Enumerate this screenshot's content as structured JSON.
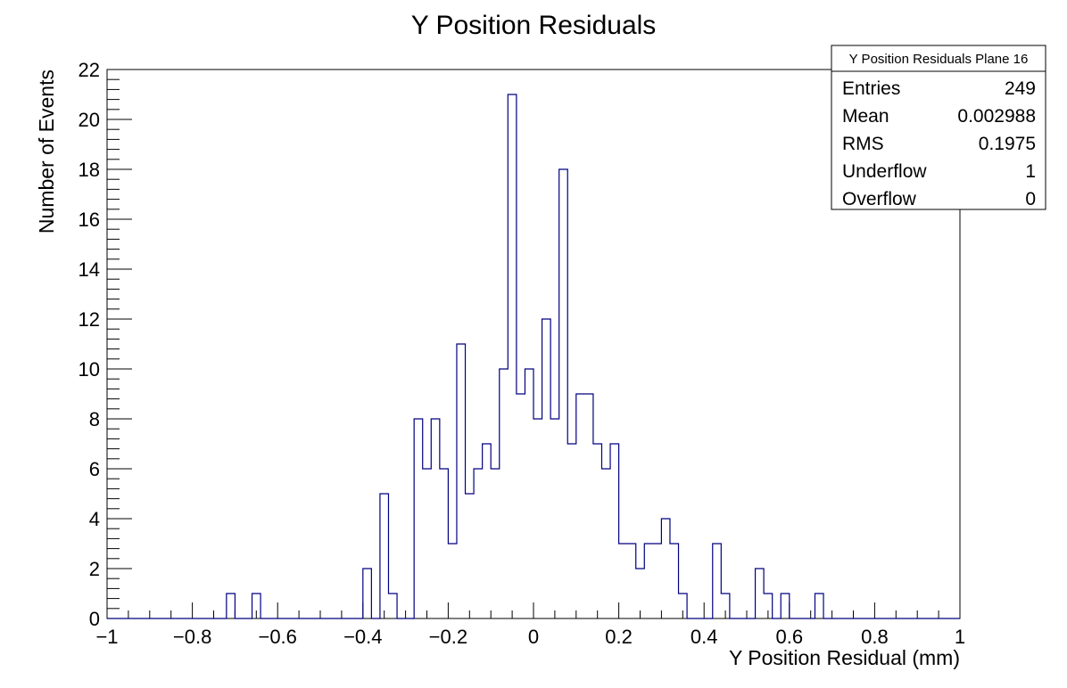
{
  "chart_data": {
    "type": "histogram",
    "title": "Y Position Residuals",
    "xlabel": "Y Position Residual (mm)",
    "ylabel": "Number of Events",
    "xlim": [
      -1,
      1
    ],
    "ylim": [
      0,
      22
    ],
    "bin_width": 0.02,
    "x_ticks": [
      -1,
      -0.8,
      -0.6,
      -0.4,
      -0.2,
      0,
      0.2,
      0.4,
      0.6,
      0.8,
      1
    ],
    "x_tick_labels": [
      "−1",
      "−0.8",
      "−0.6",
      "−0.4",
      "−0.2",
      "0",
      "0.2",
      "0.4",
      "0.6",
      "0.8",
      "1"
    ],
    "y_ticks": [
      0,
      2,
      4,
      6,
      8,
      10,
      12,
      14,
      16,
      18,
      20,
      22
    ],
    "y_tick_labels": [
      "0",
      "2",
      "4",
      "6",
      "8",
      "10",
      "12",
      "14",
      "16",
      "18",
      "20",
      "22"
    ],
    "line_color": "#000080",
    "bins": [
      {
        "low": -0.72,
        "count": 1
      },
      {
        "low": -0.66,
        "count": 1
      },
      {
        "low": -0.4,
        "count": 2
      },
      {
        "low": -0.36,
        "count": 5
      },
      {
        "low": -0.34,
        "count": 1
      },
      {
        "low": -0.28,
        "count": 8
      },
      {
        "low": -0.26,
        "count": 6
      },
      {
        "low": -0.24,
        "count": 8
      },
      {
        "low": -0.22,
        "count": 6
      },
      {
        "low": -0.2,
        "count": 3
      },
      {
        "low": -0.18,
        "count": 11
      },
      {
        "low": -0.16,
        "count": 5
      },
      {
        "low": -0.14,
        "count": 6
      },
      {
        "low": -0.12,
        "count": 7
      },
      {
        "low": -0.1,
        "count": 6
      },
      {
        "low": -0.08,
        "count": 10
      },
      {
        "low": -0.06,
        "count": 21
      },
      {
        "low": -0.04,
        "count": 9
      },
      {
        "low": -0.02,
        "count": 10
      },
      {
        "low": 0.0,
        "count": 8
      },
      {
        "low": 0.02,
        "count": 12
      },
      {
        "low": 0.04,
        "count": 8
      },
      {
        "low": 0.06,
        "count": 18
      },
      {
        "low": 0.08,
        "count": 7
      },
      {
        "low": 0.1,
        "count": 9
      },
      {
        "low": 0.12,
        "count": 9
      },
      {
        "low": 0.14,
        "count": 7
      },
      {
        "low": 0.16,
        "count": 6
      },
      {
        "low": 0.18,
        "count": 7
      },
      {
        "low": 0.2,
        "count": 3
      },
      {
        "low": 0.22,
        "count": 3
      },
      {
        "low": 0.24,
        "count": 2
      },
      {
        "low": 0.26,
        "count": 3
      },
      {
        "low": 0.28,
        "count": 3
      },
      {
        "low": 0.3,
        "count": 4
      },
      {
        "low": 0.32,
        "count": 3
      },
      {
        "low": 0.34,
        "count": 1
      },
      {
        "low": 0.42,
        "count": 3
      },
      {
        "low": 0.44,
        "count": 1
      },
      {
        "low": 0.52,
        "count": 2
      },
      {
        "low": 0.54,
        "count": 1
      },
      {
        "low": 0.58,
        "count": 1
      },
      {
        "low": 0.66,
        "count": 1
      }
    ],
    "stats_box": {
      "title": "Y Position Residuals Plane 16",
      "rows": [
        {
          "label": "Entries",
          "value": "249"
        },
        {
          "label": "Mean",
          "value": "0.002988"
        },
        {
          "label": "RMS",
          "value": "0.1975"
        },
        {
          "label": "Underflow",
          "value": "1"
        },
        {
          "label": "Overflow",
          "value": "0"
        }
      ]
    }
  }
}
